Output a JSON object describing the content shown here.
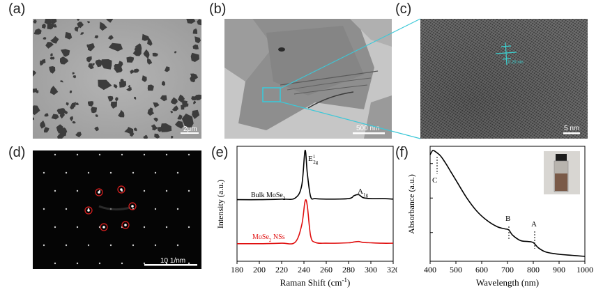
{
  "figure": {
    "panel_labels": [
      "(a)",
      "(b)",
      "(c)",
      "(d)",
      "(e)",
      "(f)"
    ],
    "a": {
      "scale_bar": "2μm"
    },
    "b": {
      "scale_bar": "500 nm"
    },
    "c": {
      "scale_bar": "5 nm",
      "annotation": "0.29 nm"
    },
    "d": {
      "scale_bar": "10  1/nm"
    },
    "e": {
      "xlabel": "Raman Shift  (cm",
      "xlabel_sup": "-1",
      "xlabel_end": ")",
      "ylabel": "Intensity (a.u.)",
      "peak_label_main": "E",
      "peak_label_main_sup": "1",
      "peak_label_main_sub": "2g",
      "peak_label_side": "A",
      "peak_label_side_sub": "1g",
      "bulk_label": "Bulk MoSe",
      "bulk_label_sub": "2",
      "ns_label": "MoSe",
      "ns_label_sub": "2",
      "ns_label_end": " NSs",
      "colors": {
        "bulk": "#000000",
        "ns": "#e01010"
      }
    },
    "f": {
      "xlabel": "Wavelength (nm)",
      "ylabel": "Absorbance (a.u.)",
      "peak_C": "C",
      "peak_B": "B",
      "peak_A": "A"
    }
  },
  "chart_data": [
    {
      "type": "line",
      "panel": "e",
      "xlabel": "Raman Shift (cm-1)",
      "ylabel": "Intensity (a.u.)",
      "xlim": [
        180,
        320
      ],
      "ticks_x": [
        180,
        200,
        220,
        240,
        260,
        280,
        300,
        320
      ],
      "series": [
        {
          "name": "Bulk MoSe2",
          "x": [
            180,
            200,
            220,
            232,
            238,
            241,
            243,
            246,
            250,
            260,
            280,
            285,
            289,
            293,
            300,
            310,
            320
          ],
          "y": [
            0.02,
            0.02,
            0.03,
            0.05,
            0.3,
            1.0,
            0.55,
            0.08,
            0.04,
            0.03,
            0.04,
            0.1,
            0.12,
            0.06,
            0.04,
            0.04,
            0.03
          ]
        },
        {
          "name": "MoSe2 NSs",
          "x": [
            180,
            200,
            220,
            232,
            238,
            241,
            243,
            246,
            250,
            260,
            280,
            285,
            289,
            293,
            300,
            310,
            320
          ],
          "y": [
            0.02,
            0.02,
            0.03,
            0.05,
            0.45,
            1.0,
            0.9,
            0.2,
            0.05,
            0.03,
            0.04,
            0.06,
            0.07,
            0.05,
            0.04,
            0.03,
            0.03
          ]
        }
      ]
    },
    {
      "type": "line",
      "panel": "f",
      "xlabel": "Wavelength (nm)",
      "ylabel": "Absorbance (a.u.)",
      "xlim": [
        400,
        1000
      ],
      "ticks_x": [
        400,
        500,
        600,
        700,
        800,
        900,
        1000
      ],
      "series": [
        {
          "x": [
            400,
            410,
            420,
            440,
            460,
            480,
            500,
            540,
            580,
            620,
            660,
            690,
            705,
            720,
            750,
            780,
            800,
            820,
            850,
            900,
            950,
            1000
          ],
          "y": [
            0.96,
            1.0,
            0.99,
            0.95,
            0.88,
            0.8,
            0.72,
            0.56,
            0.43,
            0.34,
            0.28,
            0.26,
            0.25,
            0.2,
            0.15,
            0.14,
            0.13,
            0.08,
            0.04,
            0.02,
            0.01,
            0.0
          ]
        }
      ]
    }
  ]
}
